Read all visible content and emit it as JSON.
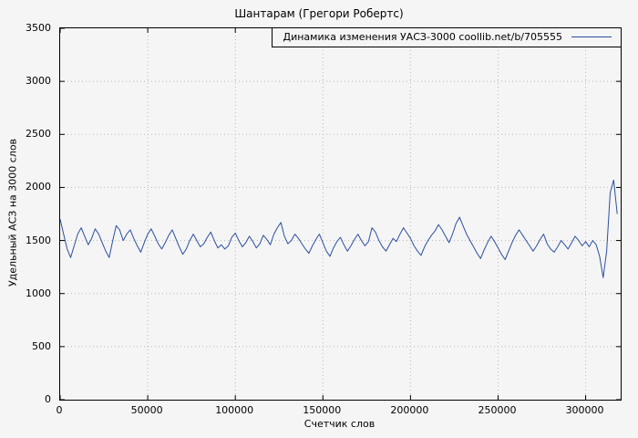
{
  "colors": {
    "background": "#f5f5f5",
    "plot_border": "#000000",
    "grid": "#b8b8b8",
    "line": "#2c4fa0",
    "text": "#000000"
  },
  "chart_data": {
    "type": "line",
    "title": "Шантарам (Грегори Робертс)",
    "legend": "Динамика изменения УАСЗ-3000 coollib.net/b/705555",
    "legend_position": "top-right",
    "xlabel": "Счетчик слов",
    "ylabel": "Удельный АСЗ на 3000 слов",
    "xlim": [
      0,
      320000
    ],
    "ylim": [
      0,
      3500
    ],
    "x_ticks": [
      0,
      50000,
      100000,
      150000,
      200000,
      250000,
      300000
    ],
    "y_ticks": [
      0,
      500,
      1000,
      1500,
      2000,
      2500,
      3000,
      3500
    ],
    "grid": true,
    "line_color": "#2c4fa0",
    "series": [
      {
        "name": "Динамика изменения УАСЗ-3000 coollib.net/b/705555",
        "x_start": 0,
        "x_step": 2000,
        "values": [
          1700,
          1560,
          1420,
          1340,
          1450,
          1560,
          1620,
          1540,
          1460,
          1520,
          1610,
          1560,
          1480,
          1400,
          1340,
          1500,
          1640,
          1600,
          1500,
          1560,
          1600,
          1520,
          1450,
          1390,
          1480,
          1560,
          1610,
          1540,
          1470,
          1420,
          1480,
          1550,
          1600,
          1520,
          1440,
          1370,
          1420,
          1500,
          1560,
          1500,
          1440,
          1470,
          1530,
          1580,
          1500,
          1430,
          1460,
          1420,
          1450,
          1530,
          1570,
          1500,
          1440,
          1480,
          1540,
          1490,
          1430,
          1470,
          1550,
          1510,
          1460,
          1560,
          1620,
          1670,
          1540,
          1470,
          1500,
          1560,
          1520,
          1470,
          1420,
          1380,
          1450,
          1510,
          1560,
          1480,
          1400,
          1350,
          1430,
          1490,
          1530,
          1460,
          1400,
          1450,
          1510,
          1560,
          1500,
          1450,
          1490,
          1620,
          1580,
          1500,
          1440,
          1400,
          1460,
          1520,
          1490,
          1560,
          1620,
          1570,
          1520,
          1450,
          1400,
          1360,
          1440,
          1500,
          1550,
          1590,
          1650,
          1600,
          1540,
          1480,
          1560,
          1660,
          1720,
          1640,
          1560,
          1500,
          1440,
          1380,
          1330,
          1410,
          1480,
          1540,
          1490,
          1430,
          1370,
          1320,
          1400,
          1480,
          1550,
          1600,
          1550,
          1500,
          1450,
          1400,
          1450,
          1510,
          1560,
          1470,
          1420,
          1390,
          1440,
          1500,
          1460,
          1420,
          1480,
          1540,
          1500,
          1450,
          1490,
          1440,
          1500,
          1460,
          1350,
          1150,
          1400,
          1950,
          2070,
          1750
        ]
      }
    ]
  }
}
